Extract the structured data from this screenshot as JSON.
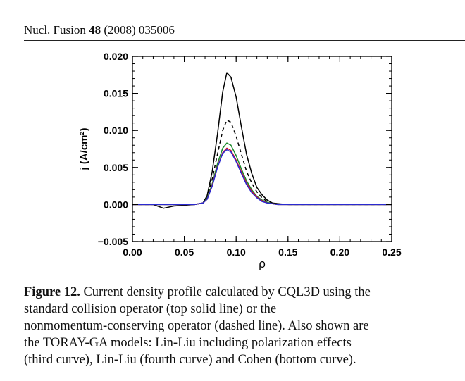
{
  "header": {
    "journal": "Nucl. Fusion",
    "volume": "48",
    "year_page": "(2008) 035006"
  },
  "chart_data": {
    "type": "line",
    "xlabel": "ρ",
    "ylabel": "j (A/cm²)",
    "xlim": [
      0.0,
      0.25
    ],
    "ylim": [
      -0.005,
      0.02
    ],
    "x_ticks": [
      "0.00",
      "0.05",
      "0.10",
      "0.15",
      "0.20",
      "0.25"
    ],
    "y_ticks": [
      "-0.005",
      "0.000",
      "0.005",
      "0.010",
      "0.015",
      "0.020"
    ],
    "grid": false,
    "legend": false,
    "series": [
      {
        "color": "#000000",
        "dash": "solid",
        "x": [
          0.0,
          0.02,
          0.03,
          0.04,
          0.05,
          0.06,
          0.068,
          0.072,
          0.077,
          0.082,
          0.087,
          0.091,
          0.095,
          0.1,
          0.105,
          0.11,
          0.115,
          0.12,
          0.125,
          0.13,
          0.135,
          0.14,
          0.15,
          0.17,
          0.2,
          0.25
        ],
        "values": [
          0.0,
          0.0,
          -0.0005,
          -0.0002,
          -0.0001,
          0.0,
          0.0002,
          0.0012,
          0.0045,
          0.0095,
          0.0152,
          0.0178,
          0.0172,
          0.0145,
          0.0105,
          0.0068,
          0.0042,
          0.0023,
          0.0013,
          0.0006,
          0.0002,
          0.0001,
          0.0,
          0.0,
          0.0,
          0.0
        ]
      },
      {
        "color": "#000000",
        "dash": "dashed",
        "x": [
          0.0,
          0.06,
          0.068,
          0.072,
          0.077,
          0.082,
          0.087,
          0.091,
          0.095,
          0.1,
          0.105,
          0.11,
          0.115,
          0.12,
          0.125,
          0.13,
          0.135,
          0.14,
          0.15,
          0.2,
          0.25
        ],
        "values": [
          0.0,
          0.0,
          0.0002,
          0.0009,
          0.0035,
          0.0068,
          0.01,
          0.0114,
          0.0111,
          0.0092,
          0.0068,
          0.0045,
          0.0029,
          0.0017,
          0.0009,
          0.0004,
          0.0002,
          0.0001,
          0.0,
          0.0,
          0.0
        ]
      },
      {
        "color": "#1a8a2a",
        "dash": "solid",
        "x": [
          0.0,
          0.06,
          0.068,
          0.072,
          0.077,
          0.082,
          0.087,
          0.091,
          0.095,
          0.1,
          0.105,
          0.11,
          0.115,
          0.12,
          0.125,
          0.13,
          0.135,
          0.14,
          0.15,
          0.2,
          0.25
        ],
        "values": [
          0.0,
          0.0,
          0.0002,
          0.0008,
          0.0028,
          0.0055,
          0.0076,
          0.0083,
          0.008,
          0.0066,
          0.0048,
          0.0032,
          0.002,
          0.0011,
          0.0006,
          0.0003,
          0.0001,
          0.0,
          0.0,
          0.0,
          0.0
        ]
      },
      {
        "color": "#cc1030",
        "dash": "solid",
        "x": [
          0.0,
          0.06,
          0.068,
          0.072,
          0.077,
          0.082,
          0.087,
          0.091,
          0.095,
          0.1,
          0.105,
          0.11,
          0.115,
          0.12,
          0.125,
          0.13,
          0.135,
          0.14,
          0.15,
          0.2,
          0.25
        ],
        "values": [
          0.0,
          0.0,
          0.0002,
          0.0007,
          0.0026,
          0.0051,
          0.007,
          0.0076,
          0.0073,
          0.006,
          0.0044,
          0.0029,
          0.0018,
          0.001,
          0.0005,
          0.0002,
          0.0001,
          0.0,
          0.0,
          0.0,
          0.0
        ]
      },
      {
        "color": "#2a2ad0",
        "dash": "solid",
        "x": [
          0.0,
          0.06,
          0.068,
          0.072,
          0.077,
          0.082,
          0.087,
          0.091,
          0.095,
          0.1,
          0.105,
          0.11,
          0.115,
          0.12,
          0.125,
          0.13,
          0.135,
          0.14,
          0.15,
          0.2,
          0.25
        ],
        "values": [
          0.0,
          0.0,
          0.0002,
          0.0007,
          0.0025,
          0.005,
          0.0069,
          0.0074,
          0.0071,
          0.0058,
          0.0042,
          0.0027,
          0.0016,
          0.0009,
          0.0004,
          0.0002,
          0.0001,
          0.0,
          0.0,
          0.0,
          0.0
        ]
      }
    ]
  },
  "caption": {
    "label": "Figure 12.",
    "lines": [
      "Current density profile calculated by CQL3D using the",
      "standard collision operator (top solid line) or the",
      "nonmomentum-conserving operator (dashed line).  Also shown are",
      "the TORAY-GA models: Lin-Liu including polarization effects",
      "(third curve), Lin-Liu (fourth curve) and Cohen (bottom curve)."
    ]
  }
}
